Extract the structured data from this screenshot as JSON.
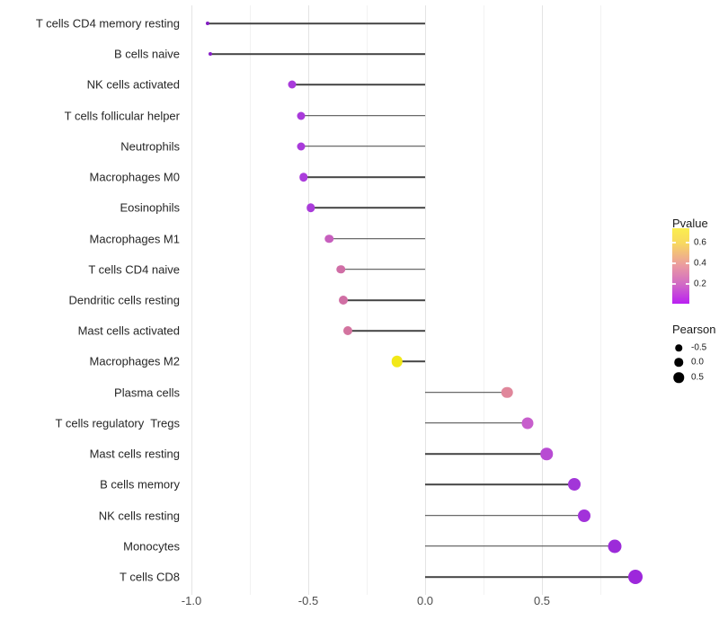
{
  "chart_data": {
    "type": "scatter",
    "variant": "lollipop",
    "orientation": "horizontal",
    "xlabel": "",
    "ylabel": "",
    "xlim": [
      -1.02,
      0.99
    ],
    "grid": true,
    "x_ticks": [
      {
        "value": -1.0,
        "label": "-1.0"
      },
      {
        "value": -0.5,
        "label": "-0.5"
      },
      {
        "value": 0.0,
        "label": "0.0"
      },
      {
        "value": 0.5,
        "label": "0.5"
      }
    ],
    "x_minor_ticks": [
      -0.75,
      -0.25,
      0.25,
      0.75
    ],
    "points": [
      {
        "label": "T cells CD4 memory resting",
        "pearson": -0.93,
        "color": "#831dc2",
        "diameter": 4
      },
      {
        "label": "B cells naive",
        "pearson": -0.92,
        "color": "#871fc7",
        "diameter": 4
      },
      {
        "label": "NK cells activated",
        "pearson": -0.57,
        "color": "#a93bdb",
        "diameter": 9
      },
      {
        "label": "T cells follicular helper",
        "pearson": -0.53,
        "color": "#a93adb",
        "diameter": 9
      },
      {
        "label": "Neutrophils",
        "pearson": -0.53,
        "color": "#a93adb",
        "diameter": 9
      },
      {
        "label": "Macrophages M0",
        "pearson": -0.52,
        "color": "#ab3ddc",
        "diameter": 9.5
      },
      {
        "label": "Eosinophils",
        "pearson": -0.49,
        "color": "#aa3cda",
        "diameter": 9.5
      },
      {
        "label": "Macrophages M1",
        "pearson": -0.41,
        "color": "#c75fbe",
        "diameter": 9.5
      },
      {
        "label": "T cells CD4 naive",
        "pearson": -0.36,
        "color": "#d06ea6",
        "diameter": 9.5
      },
      {
        "label": "Dendritic cells resting",
        "pearson": -0.35,
        "color": "#d06fa4",
        "diameter": 10
      },
      {
        "label": "Mast cells activated",
        "pearson": -0.33,
        "color": "#d3739f",
        "diameter": 10
      },
      {
        "label": "Macrophages M2",
        "pearson": -0.12,
        "color": "#f2e818",
        "diameter": 12.5
      },
      {
        "label": "Plasma cells",
        "pearson": 0.35,
        "color": "#e0879b",
        "diameter": 12.5
      },
      {
        "label": "T cells regulatory  Tregs",
        "pearson": 0.44,
        "color": "#c75ecc",
        "diameter": 13
      },
      {
        "label": "Mast cells resting",
        "pearson": 0.52,
        "color": "#b84bd3",
        "diameter": 13.5
      },
      {
        "label": "B cells memory",
        "pearson": 0.64,
        "color": "#a236d8",
        "diameter": 14
      },
      {
        "label": "NK cells resting",
        "pearson": 0.68,
        "color": "#a232da",
        "diameter": 14
      },
      {
        "label": "Monocytes",
        "pearson": 0.81,
        "color": "#9c2bd9",
        "diameter": 15
      },
      {
        "label": "T cells CD8",
        "pearson": 0.9,
        "color": "#9d27db",
        "diameter": 16
      }
    ],
    "legend_pvalue": {
      "title": "Pvalue",
      "position": "right",
      "gradient_top_to_bottom": [
        "#fbee4f",
        "#f8da5e",
        "#eb9ba0",
        "#d069c6",
        "#ba1ff2"
      ],
      "ticks": [
        {
          "label": "0.6",
          "value": 0.6
        },
        {
          "label": "0.4",
          "value": 0.4
        },
        {
          "label": "0.2",
          "value": 0.2
        }
      ]
    },
    "legend_pearson": {
      "title": "Pearson",
      "position": "right",
      "entries": [
        {
          "label": "-0.5",
          "diameter": 7.5
        },
        {
          "label": "0.0",
          "diameter": 9.5
        },
        {
          "label": "0.5",
          "diameter": 11.5
        }
      ],
      "key_color": "#000000"
    }
  }
}
